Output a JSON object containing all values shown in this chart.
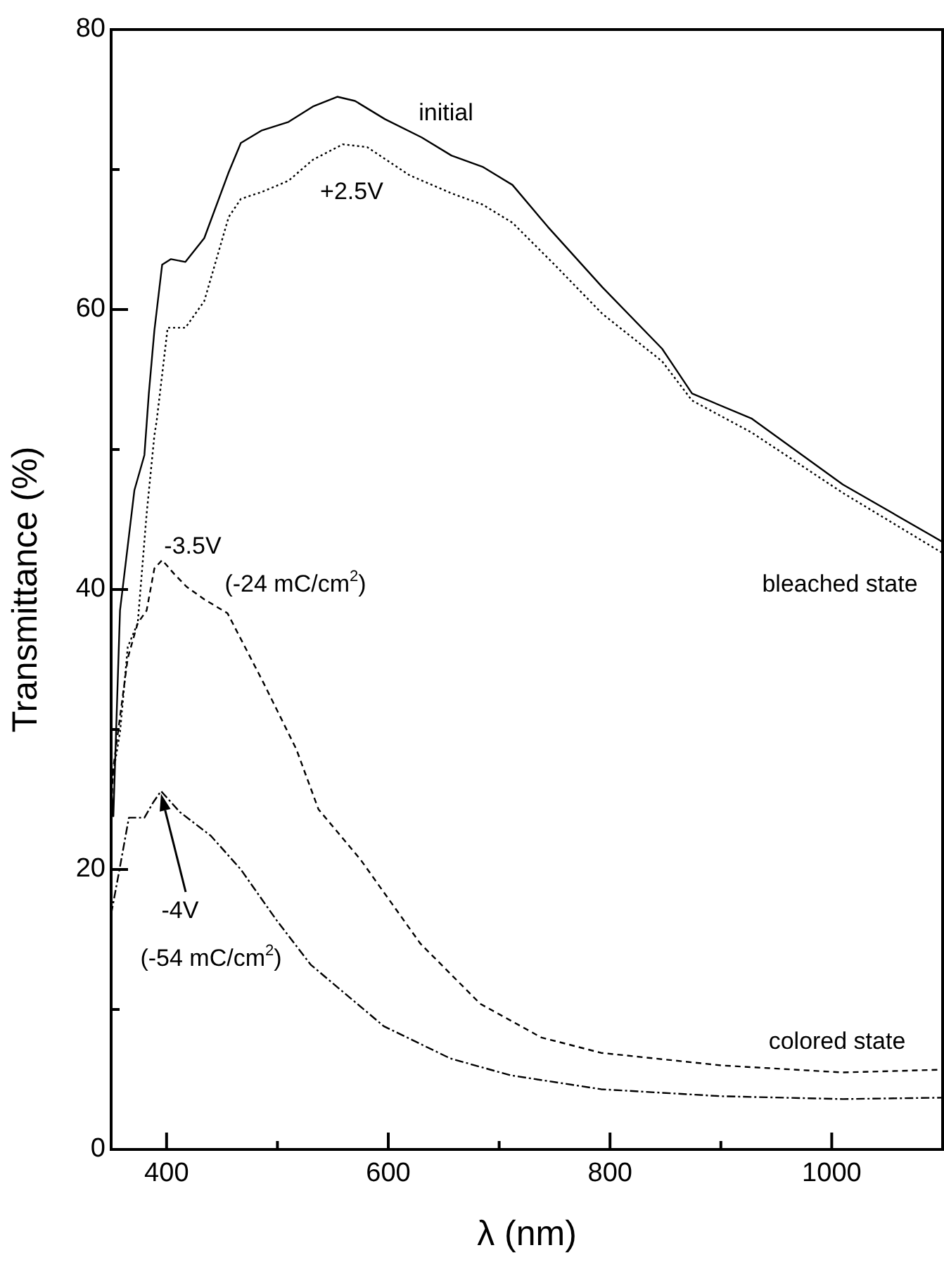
{
  "chart_data": {
    "type": "line",
    "xlabel": "λ (nm)",
    "ylabel": "Transmittance (%)",
    "xlim": [
      350,
      1100
    ],
    "xticks": [
      400,
      {
        "value": 500,
        "label": null
      },
      600,
      {
        "value": 700,
        "label": null
      },
      800,
      {
        "value": 900,
        "label": null
      },
      1000
    ],
    "ylim": [
      0,
      80
    ],
    "yticks": [
      0,
      {
        "value": 10,
        "label": null
      },
      20,
      {
        "value": 30,
        "label": null
      },
      40,
      {
        "value": 50,
        "label": null
      },
      60,
      {
        "value": 70,
        "label": null
      },
      80
    ],
    "grid": false,
    "legend": false,
    "marker": "none",
    "series": [
      {
        "color": "#000000",
        "line_style": "solid",
        "x": [
          350,
          352,
          358,
          371,
          380,
          384,
          389,
          396,
          404,
          417,
          434,
          456,
          467,
          486,
          510,
          532,
          554,
          570,
          597,
          630,
          657,
          685,
          712,
          744,
          793,
          847,
          874,
          928,
          1010,
          1100
        ],
        "values": [
          26,
          23.8,
          38.5,
          47.1,
          49.6,
          54.0,
          58.5,
          63.2,
          63.6,
          63.4,
          65.1,
          69.8,
          71.9,
          72.8,
          73.4,
          74.5,
          75.2,
          74.9,
          73.6,
          72.3,
          71.0,
          70.2,
          68.9,
          65.9,
          61.6,
          57.2,
          54.0,
          52.2,
          47.5,
          43.4
        ]
      },
      {
        "color": "#000000",
        "line_style": "dotted",
        "x": [
          350,
          358,
          365,
          374,
          382,
          389,
          391,
          401,
          417,
          434,
          456,
          467,
          486,
          510,
          532,
          559,
          581,
          619,
          657,
          685,
          712,
          750,
          793,
          847,
          874,
          928,
          1010,
          1100
        ],
        "values": [
          26,
          29.8,
          35.9,
          37.6,
          45.4,
          51.0,
          52.0,
          58.7,
          58.7,
          60.6,
          66.6,
          67.9,
          68.4,
          69.2,
          70.7,
          71.8,
          71.6,
          69.6,
          68.3,
          67.5,
          66.2,
          63.2,
          59.7,
          56.3,
          53.5,
          51.2,
          46.9,
          42.6
        ]
      },
      {
        "color": "#000000",
        "line_style": "dashed",
        "x": [
          350,
          352,
          365,
          374,
          382,
          389,
          396,
          407,
          418,
          434,
          455,
          487,
          517,
          537,
          575,
          629,
          683,
          738,
          792,
          901,
          1010,
          1100
        ],
        "values": [
          24,
          27.3,
          35.1,
          37.6,
          38.5,
          41.5,
          42.1,
          41.1,
          40.2,
          39.3,
          38.3,
          33.4,
          28.6,
          24.3,
          20.7,
          14.7,
          10.4,
          8.0,
          6.9,
          6.0,
          5.5,
          5.7
        ]
      },
      {
        "color": "#000000",
        "line_style": "dashdot",
        "x": [
          350,
          358,
          366,
          380,
          388,
          395,
          412,
          440,
          467,
          499,
          530,
          596,
          656,
          710,
          792,
          901,
          1010,
          1100
        ],
        "values": [
          16.8,
          20.2,
          23.7,
          23.7,
          24.8,
          25.6,
          24.1,
          22.4,
          20.0,
          16.4,
          13.2,
          8.8,
          6.5,
          5.3,
          4.3,
          3.8,
          3.6,
          3.7
        ]
      }
    ],
    "annotations": [
      "initial",
      "+2.5V",
      "-3.5V",
      "(-24 mC/cm$^{2}$)",
      "-4V",
      "(-54 mC/cm$^{2}$)",
      "bleached state",
      "colored state"
    ]
  }
}
